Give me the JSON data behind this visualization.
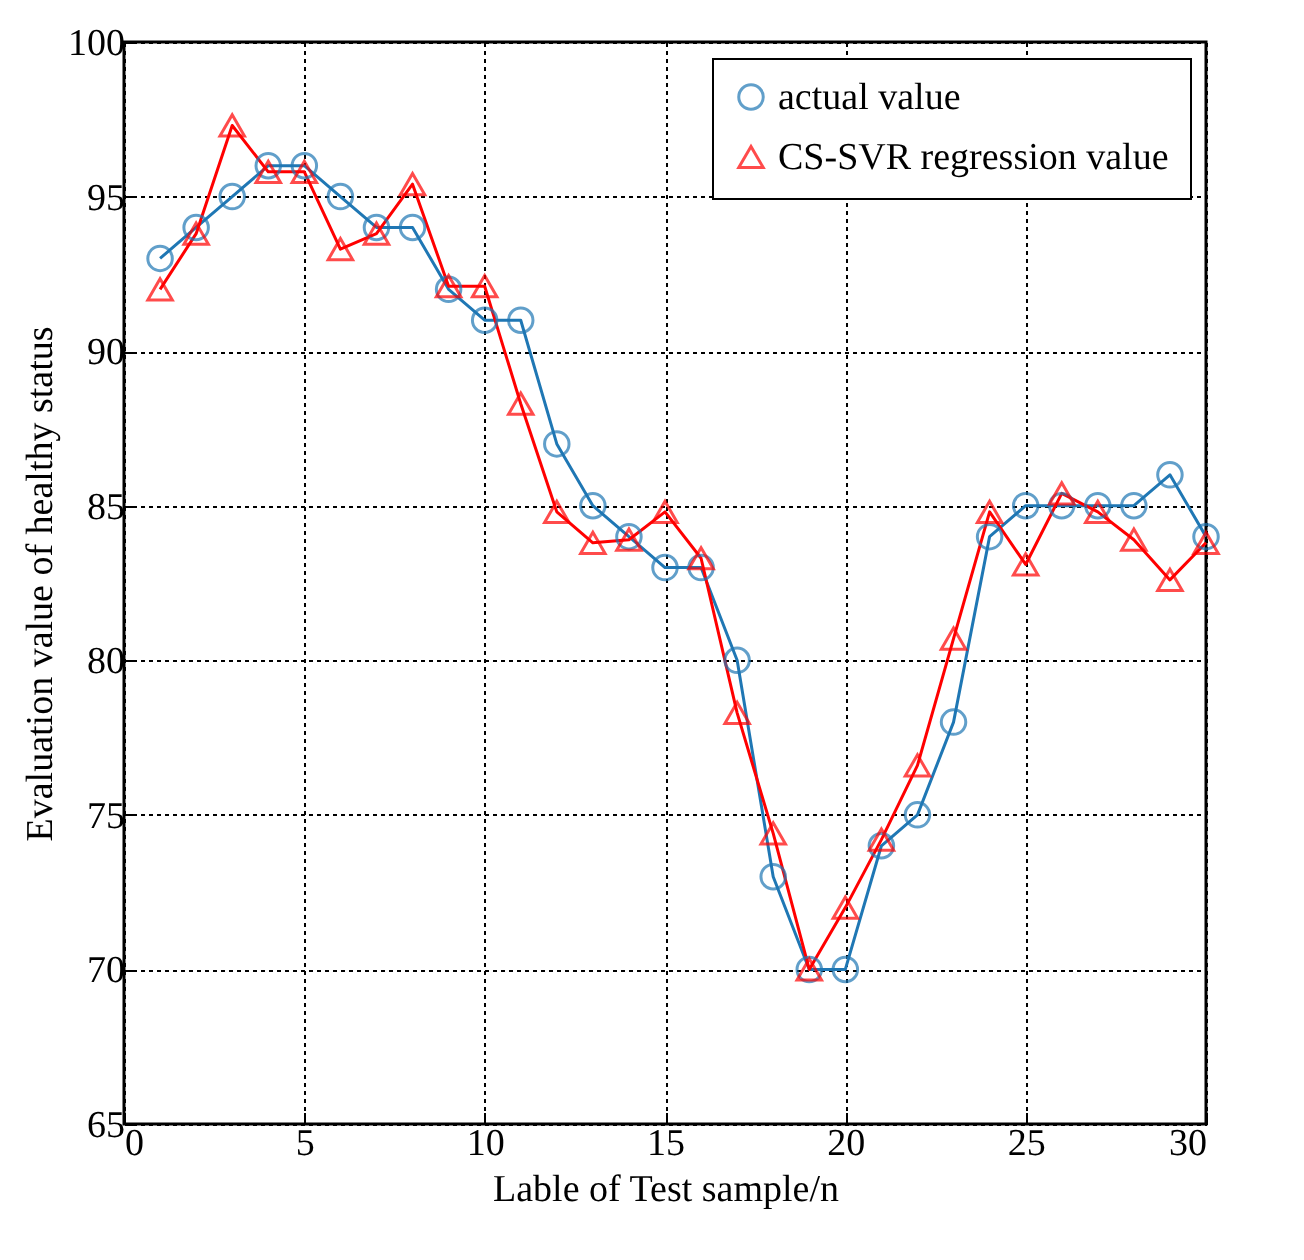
{
  "chart_data": {
    "type": "line",
    "xlabel": "Lable of Test sample/n",
    "ylabel": "Evaluation value of healthy status",
    "x": [
      1,
      2,
      3,
      4,
      5,
      6,
      7,
      8,
      9,
      10,
      11,
      12,
      13,
      14,
      15,
      16,
      17,
      18,
      19,
      20,
      21,
      22,
      23,
      24,
      25,
      26,
      27,
      28,
      29,
      30
    ],
    "series": [
      {
        "name": "actual value",
        "color": "#1f77b4",
        "marker": "circle",
        "values": [
          93,
          94,
          95,
          96,
          96,
          95,
          94,
          94,
          92,
          91,
          91,
          87,
          85,
          84,
          83,
          83,
          80,
          73,
          70,
          70,
          74,
          75,
          78,
          84,
          85,
          85,
          85,
          85,
          86,
          84
        ]
      },
      {
        "name": "CS-SVR regression value",
        "color": "#ff0000",
        "marker": "triangle",
        "values": [
          92,
          93.8,
          97.3,
          95.8,
          95.8,
          93.3,
          93.8,
          95.4,
          92.1,
          92.1,
          88.3,
          84.8,
          83.8,
          83.9,
          84.8,
          83.3,
          78.3,
          74.4,
          70,
          72,
          74.2,
          76.6,
          80.7,
          84.8,
          83.1,
          85.4,
          84.8,
          83.9,
          82.6,
          83.8
        ]
      }
    ],
    "xlim": [
      0,
      30
    ],
    "xticks": [
      0,
      5,
      10,
      15,
      20,
      25,
      30
    ],
    "ylim": [
      65,
      100
    ],
    "yticks": [
      65,
      70,
      75,
      80,
      85,
      90,
      95,
      100
    ],
    "grid": true,
    "legend": "top right",
    "line_style": "solid"
  }
}
